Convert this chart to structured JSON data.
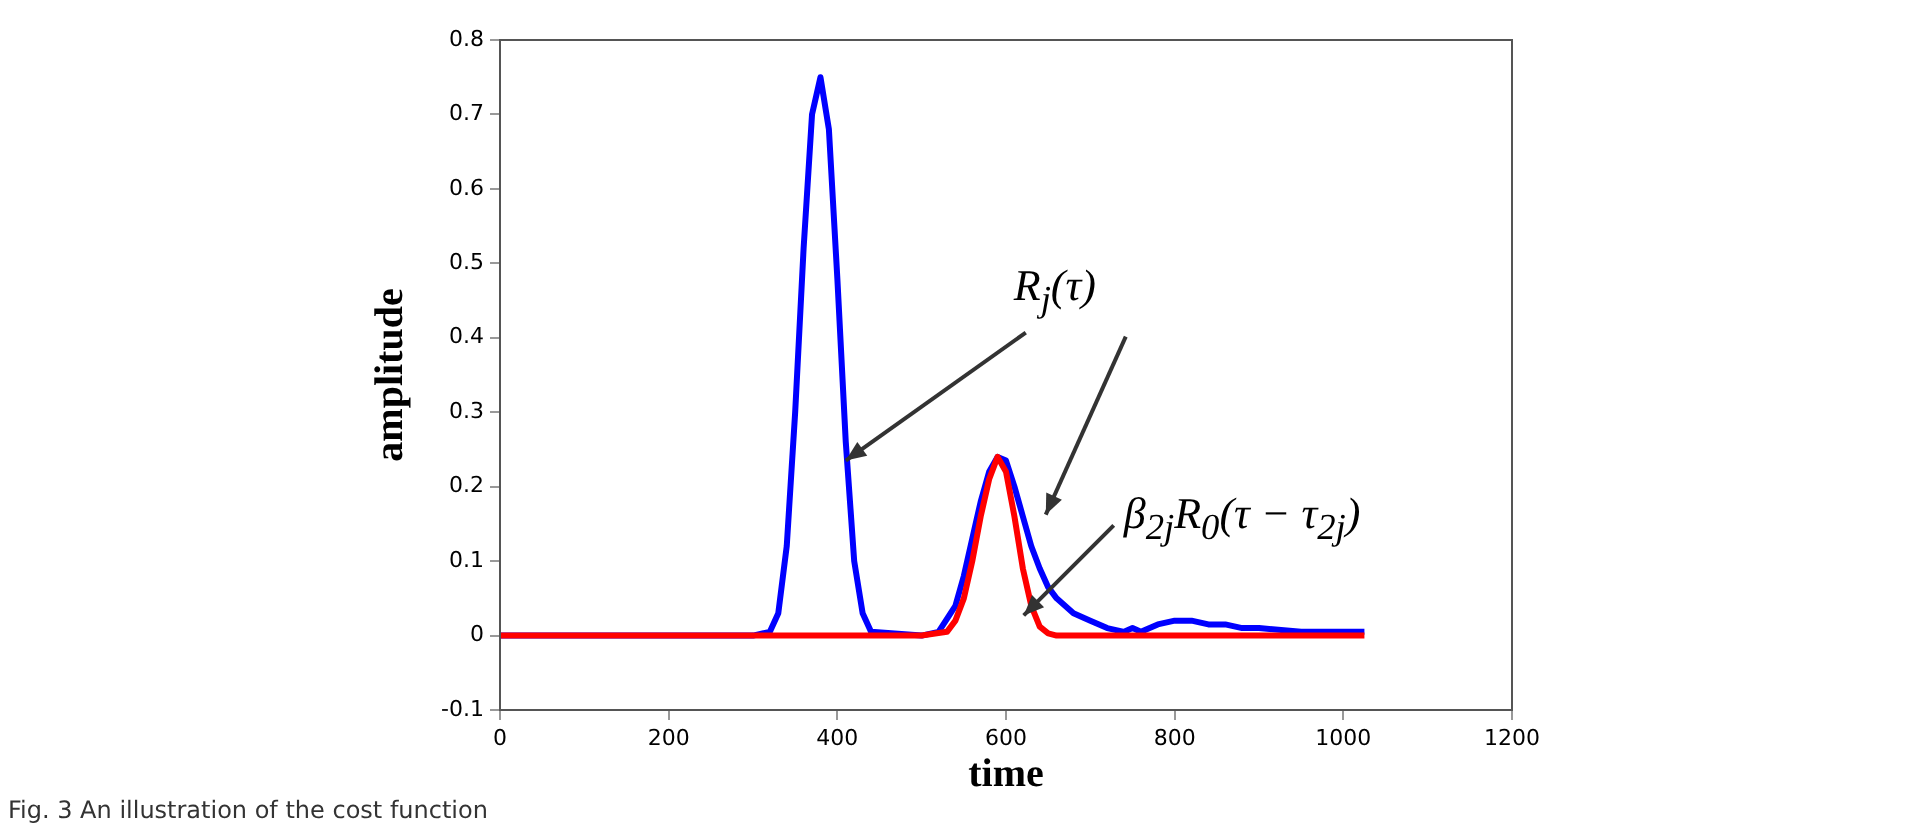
{
  "chart_data": {
    "type": "line",
    "xlabel": "time",
    "ylabel": "amplitude",
    "xlim": [
      0,
      1200
    ],
    "xticks": [
      0,
      200,
      400,
      600,
      800,
      1000,
      1200
    ],
    "ylim": [
      -0.1,
      0.8
    ],
    "yticks": [
      -0.1,
      0,
      0.1,
      0.2,
      0.3,
      0.4,
      0.5,
      0.6,
      0.7,
      0.8
    ],
    "grid": false,
    "legend": false,
    "marker": "none",
    "line_style": "solid",
    "series": [
      {
        "color": "#ff0000",
        "x": [
          0,
          500,
          530,
          540,
          550,
          560,
          570,
          580,
          590,
          600,
          610,
          620,
          630,
          640,
          650,
          660,
          700,
          1025
        ],
        "values": [
          0,
          0,
          0.005,
          0.02,
          0.05,
          0.1,
          0.16,
          0.21,
          0.24,
          0.22,
          0.16,
          0.09,
          0.04,
          0.012,
          0.003,
          0,
          0,
          0
        ]
      },
      {
        "color": "#0000ff",
        "x": [
          0,
          300,
          320,
          330,
          340,
          350,
          360,
          370,
          380,
          390,
          400,
          410,
          420,
          430,
          440,
          500,
          520,
          540,
          550,
          560,
          570,
          580,
          590,
          600,
          610,
          620,
          630,
          640,
          650,
          660,
          680,
          700,
          720,
          740,
          750,
          760,
          780,
          800,
          820,
          840,
          860,
          880,
          900,
          950,
          1000,
          1025
        ],
        "values": [
          0,
          0,
          0.005,
          0.03,
          0.12,
          0.3,
          0.52,
          0.7,
          0.75,
          0.68,
          0.48,
          0.26,
          0.1,
          0.03,
          0.005,
          0,
          0.005,
          0.04,
          0.08,
          0.13,
          0.18,
          0.22,
          0.24,
          0.235,
          0.2,
          0.16,
          0.12,
          0.09,
          0.065,
          0.05,
          0.03,
          0.02,
          0.01,
          0.005,
          0.01,
          0.005,
          0.015,
          0.02,
          0.02,
          0.015,
          0.015,
          0.01,
          0.01,
          0.005,
          0.005,
          0.005
        ]
      }
    ],
    "annotations": [
      {
        "text": "R$_{j}$(τ)",
        "x": 410,
        "y": 0.235
      },
      {
        "text": "β$_{2j}$R$_{0}$(τ − τ$_{2j}$)",
        "x": 621,
        "y": 0.027
      },
      "Fig. 3 An illustration of the cost function"
    ]
  }
}
